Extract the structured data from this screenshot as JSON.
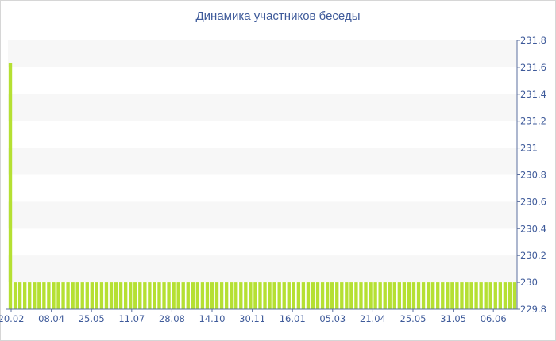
{
  "chart_data": {
    "type": "bar",
    "title": "Динамика участников беседы",
    "xlabel": "",
    "ylabel": "",
    "ylim": [
      229.8,
      231.8
    ],
    "y_ticks": [
      "229.8",
      "230",
      "230.2",
      "230.4",
      "230.6",
      "230.8",
      "231",
      "231.2",
      "231.4",
      "231.6",
      "231.8"
    ],
    "x_tick_labels": [
      "20.02",
      "08.04",
      "25.05",
      "11.07",
      "28.08",
      "14.10",
      "30.11",
      "16.01",
      "05.03",
      "21.04",
      "25.05",
      "31.05",
      "06.06"
    ],
    "grid": "horizontal alternating bands",
    "y_axis_position": "right",
    "bar_color": "#b5e033",
    "series": [
      {
        "values": [
          231.63,
          230,
          230,
          230,
          230,
          230,
          230,
          230,
          230,
          230,
          230,
          230,
          230,
          230,
          230,
          230,
          230,
          230,
          230,
          230,
          230,
          230,
          230,
          230,
          230,
          230,
          230,
          230,
          230,
          230,
          230,
          230,
          230,
          230,
          230,
          230,
          230,
          230,
          230,
          230,
          230,
          230,
          230,
          230,
          230,
          230,
          230,
          230,
          230,
          230,
          230,
          230,
          230,
          230,
          230,
          230,
          230,
          230,
          230,
          230,
          230,
          230,
          230,
          230,
          230,
          230,
          230,
          230,
          230,
          230,
          230,
          230,
          230,
          230,
          230,
          230,
          230,
          230,
          230,
          230,
          230,
          230,
          230,
          230,
          230,
          230,
          230,
          230,
          230,
          230,
          230,
          230,
          230,
          230,
          230,
          230,
          230,
          230,
          230,
          230,
          230,
          230,
          230,
          230,
          230,
          230
        ]
      }
    ]
  }
}
